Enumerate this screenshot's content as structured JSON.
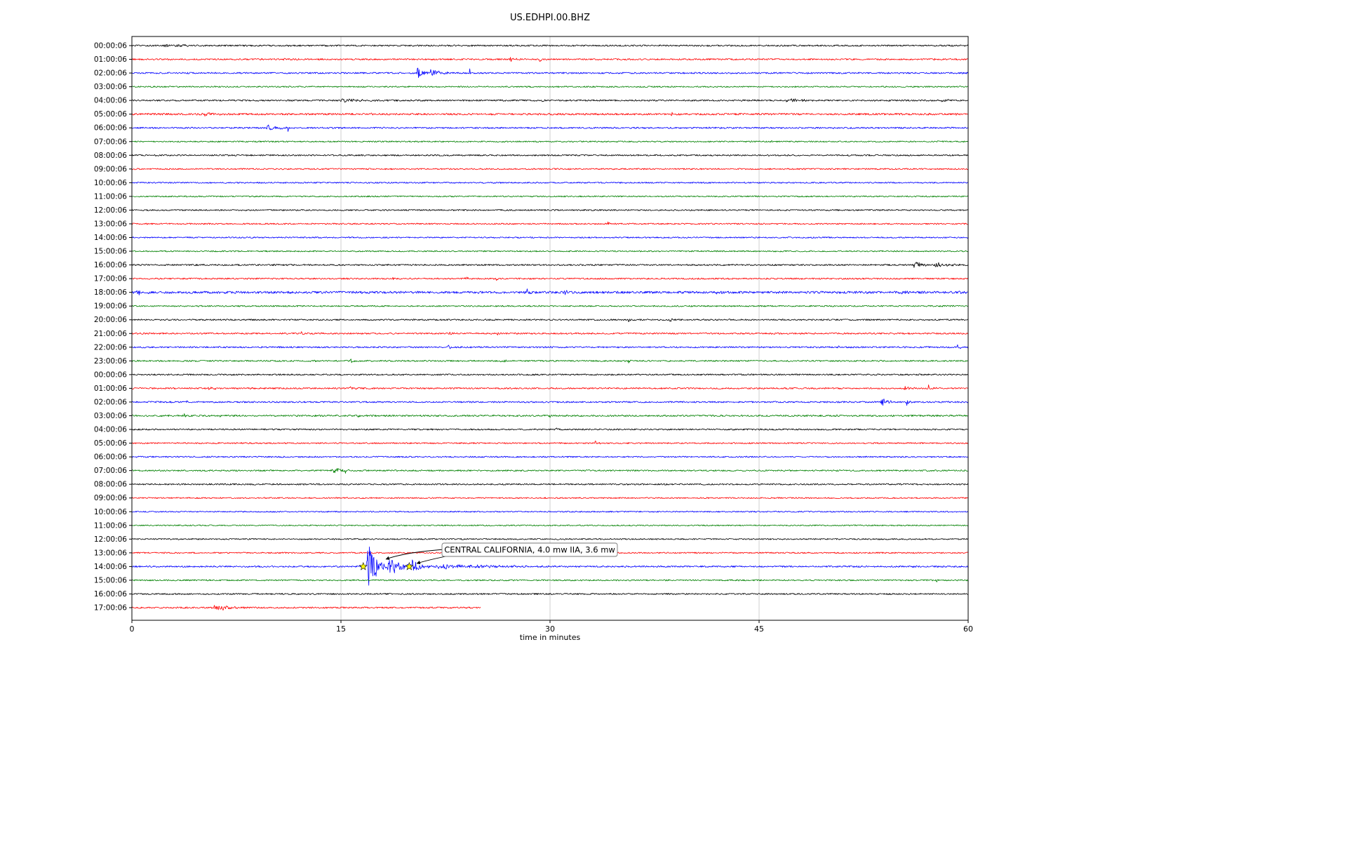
{
  "title": "US.EDHPI.00.BHZ",
  "chart_data": {
    "type": "line",
    "subtype": "seismogram-dayplot",
    "title": "US.EDHPI.00.BHZ",
    "xlabel": "time in minutes",
    "x_range": [
      0,
      60
    ],
    "x_ticks": [
      0,
      15,
      30,
      45,
      60
    ],
    "x_tick_labels": [
      "0",
      "15",
      "30",
      "45",
      "60"
    ],
    "grid": true,
    "legend": false,
    "color_cycle": [
      "#000000",
      "#ff0000",
      "#0000ff",
      "#008000"
    ],
    "rows": [
      {
        "label": "00:00:06",
        "noise": 1.0,
        "events": [
          {
            "t": 2.3,
            "dur": 0.5,
            "amp": 3
          },
          {
            "t": 3.0,
            "dur": 1.5,
            "amp": 2
          },
          {
            "t": 11.2,
            "dur": 0.3,
            "amp": 2.5
          }
        ]
      },
      {
        "label": "01:00:06",
        "noise": 1.0,
        "events": [
          {
            "t": 10.7,
            "dur": 0.3,
            "amp": 3
          },
          {
            "t": 27.0,
            "dur": 0.6,
            "amp": 4
          },
          {
            "t": 29.2,
            "dur": 0.4,
            "amp": 3.5
          },
          {
            "t": 57.5,
            "dur": 0.15,
            "amp": 5
          }
        ]
      },
      {
        "label": "02:00:06",
        "noise": 1.0,
        "events": [
          {
            "t": 20.4,
            "dur": 0.8,
            "amp": 9
          },
          {
            "t": 21.3,
            "dur": 1.2,
            "amp": 7
          },
          {
            "t": 24.2,
            "dur": 0.12,
            "amp": 10
          }
        ]
      },
      {
        "label": "03:00:06",
        "noise": 0.85,
        "events": []
      },
      {
        "label": "04:00:06",
        "noise": 1.0,
        "events": [
          {
            "t": 14.8,
            "dur": 2.8,
            "amp": 3.5
          },
          {
            "t": 29.4,
            "dur": 0.3,
            "amp": 3
          },
          {
            "t": 46.8,
            "dur": 2.5,
            "amp": 2.2
          },
          {
            "t": 58.0,
            "dur": 1.0,
            "amp": 2
          }
        ]
      },
      {
        "label": "05:00:06",
        "noise": 1.25,
        "events": [
          {
            "t": 5.0,
            "dur": 2.0,
            "amp": 2.2
          },
          {
            "t": 17.0,
            "dur": 0.5,
            "amp": 2.5
          },
          {
            "t": 38.6,
            "dur": 0.5,
            "amp": 3
          }
        ]
      },
      {
        "label": "06:00:06",
        "noise": 1.0,
        "events": [
          {
            "t": 9.6,
            "dur": 1.6,
            "amp": 4
          },
          {
            "t": 11.1,
            "dur": 0.3,
            "amp": 8
          }
        ]
      },
      {
        "label": "07:00:06",
        "noise": 0.85,
        "events": [
          {
            "t": 45.8,
            "dur": 0.15,
            "amp": 3
          }
        ]
      },
      {
        "label": "08:00:06",
        "noise": 0.95,
        "events": []
      },
      {
        "label": "09:00:06",
        "noise": 0.9,
        "events": []
      },
      {
        "label": "10:00:06",
        "noise": 0.85,
        "events": []
      },
      {
        "label": "11:00:06",
        "noise": 0.85,
        "events": []
      },
      {
        "label": "12:00:06",
        "noise": 0.9,
        "events": []
      },
      {
        "label": "13:00:06",
        "noise": 0.9,
        "events": [
          {
            "t": 34.1,
            "dur": 0.2,
            "amp": 4
          }
        ]
      },
      {
        "label": "14:00:06",
        "noise": 0.85,
        "events": []
      },
      {
        "label": "15:00:06",
        "noise": 0.85,
        "events": []
      },
      {
        "label": "16:00:06",
        "noise": 1.0,
        "events": [
          {
            "t": 56.0,
            "dur": 1.2,
            "amp": 5
          },
          {
            "t": 57.5,
            "dur": 1.5,
            "amp": 4
          }
        ]
      },
      {
        "label": "17:00:06",
        "noise": 0.95,
        "events": [
          {
            "t": 18.7,
            "dur": 0.4,
            "amp": 3
          },
          {
            "t": 23.9,
            "dur": 0.3,
            "amp": 4
          },
          {
            "t": 26.1,
            "dur": 0.3,
            "amp": 3.5
          }
        ]
      },
      {
        "label": "18:00:06",
        "noise": 1.5,
        "events": [
          {
            "t": 0.3,
            "dur": 0.8,
            "amp": 4
          },
          {
            "t": 28.3,
            "dur": 0.5,
            "amp": 4
          },
          {
            "t": 31.0,
            "dur": 0.4,
            "amp": 3
          },
          {
            "t": 41.8,
            "dur": 0.4,
            "amp": 3
          },
          {
            "t": 54.8,
            "dur": 0.8,
            "amp": 4
          },
          {
            "t": 59.3,
            "dur": 0.5,
            "amp": 3
          }
        ]
      },
      {
        "label": "19:00:06",
        "noise": 0.9,
        "events": []
      },
      {
        "label": "20:00:06",
        "noise": 0.95,
        "events": [
          {
            "t": 35.6,
            "dur": 0.15,
            "amp": 7
          },
          {
            "t": 38.5,
            "dur": 1.2,
            "amp": 3
          }
        ]
      },
      {
        "label": "21:00:06",
        "noise": 1.0,
        "events": [
          {
            "t": 12.1,
            "dur": 0.5,
            "amp": 3
          },
          {
            "t": 22.7,
            "dur": 0.4,
            "amp": 4
          },
          {
            "t": 26.2,
            "dur": 0.4,
            "amp": 3
          }
        ]
      },
      {
        "label": "22:00:06",
        "noise": 1.0,
        "events": [
          {
            "t": 22.6,
            "dur": 0.4,
            "amp": 4
          },
          {
            "t": 50.6,
            "dur": 0.5,
            "amp": 3
          },
          {
            "t": 59.2,
            "dur": 0.5,
            "amp": 4
          }
        ]
      },
      {
        "label": "23:00:06",
        "noise": 0.95,
        "events": [
          {
            "t": 12.7,
            "dur": 0.5,
            "amp": 3
          },
          {
            "t": 15.6,
            "dur": 0.6,
            "amp": 3
          },
          {
            "t": 26.4,
            "dur": 0.6,
            "amp": 4
          },
          {
            "t": 35.6,
            "dur": 0.2,
            "amp": 6
          }
        ]
      },
      {
        "label": "00:00:06",
        "noise": 0.95,
        "events": [
          {
            "t": 19.4,
            "dur": 0.8,
            "amp": 2.2
          }
        ]
      },
      {
        "label": "01:00:06",
        "noise": 1.0,
        "events": [
          {
            "t": 5.4,
            "dur": 1.2,
            "amp": 2.2
          },
          {
            "t": 15.6,
            "dur": 0.5,
            "amp": 2.5
          },
          {
            "t": 55.4,
            "dur": 0.6,
            "amp": 4
          },
          {
            "t": 57.1,
            "dur": 0.5,
            "amp": 5
          }
        ]
      },
      {
        "label": "02:00:06",
        "noise": 1.0,
        "events": [
          {
            "t": 3.8,
            "dur": 0.4,
            "amp": 3
          },
          {
            "t": 53.7,
            "dur": 0.8,
            "amp": 6
          },
          {
            "t": 55.5,
            "dur": 0.6,
            "amp": 6
          }
        ]
      },
      {
        "label": "03:00:06",
        "noise": 1.1,
        "events": [
          {
            "t": 3.7,
            "dur": 0.3,
            "amp": 4
          },
          {
            "t": 6.2,
            "dur": 0.3,
            "amp": 4
          },
          {
            "t": 16.2,
            "dur": 0.15,
            "amp": 8
          },
          {
            "t": 29.9,
            "dur": 0.3,
            "amp": 5
          },
          {
            "t": 35.3,
            "dur": 0.2,
            "amp": 5
          }
        ]
      },
      {
        "label": "04:00:06",
        "noise": 0.95,
        "events": [
          {
            "t": 30.4,
            "dur": 0.25,
            "amp": 4
          }
        ]
      },
      {
        "label": "05:00:06",
        "noise": 0.9,
        "events": [
          {
            "t": 33.2,
            "dur": 0.4,
            "amp": 3
          }
        ]
      },
      {
        "label": "06:00:06",
        "noise": 0.9,
        "events": []
      },
      {
        "label": "07:00:06",
        "noise": 0.95,
        "events": [
          {
            "t": 14.3,
            "dur": 1.2,
            "amp": 4
          },
          {
            "t": 15.3,
            "dur": 0.2,
            "amp": 7
          }
        ]
      },
      {
        "label": "08:00:06",
        "noise": 0.95,
        "events": []
      },
      {
        "label": "09:00:06",
        "noise": 0.85,
        "events": []
      },
      {
        "label": "10:00:06",
        "noise": 0.8,
        "events": []
      },
      {
        "label": "11:00:06",
        "noise": 0.8,
        "events": []
      },
      {
        "label": "12:00:06",
        "noise": 0.85,
        "events": [
          {
            "t": 47.0,
            "dur": 0.15,
            "amp": 2.5
          }
        ]
      },
      {
        "label": "13:00:06",
        "noise": 0.85,
        "events": []
      },
      {
        "label": "14:00:06",
        "noise": 1.0,
        "events": [
          {
            "t": 16.8,
            "dur": 1.3,
            "amp": 34
          },
          {
            "t": 18.3,
            "dur": 2.0,
            "amp": 12
          },
          {
            "t": 19.9,
            "dur": 1.6,
            "amp": 9
          },
          {
            "t": 21.5,
            "dur": 8.0,
            "amp": 3
          },
          {
            "t": 56.0,
            "dur": 0.3,
            "amp": 2
          }
        ]
      },
      {
        "label": "15:00:06",
        "noise": 0.9,
        "events": [
          {
            "t": 57.7,
            "dur": 0.3,
            "amp": 3
          }
        ]
      },
      {
        "label": "16:00:06",
        "noise": 0.95,
        "events": []
      },
      {
        "label": "17:00:06",
        "noise": 1.0,
        "end": 25,
        "events": [
          {
            "t": 5.8,
            "dur": 1.8,
            "amp": 5
          }
        ]
      }
    ],
    "annotation": {
      "text": "CENTRAL CALIFORNIA, 4.0 mw IIA, 3.6 mw",
      "row_label": "14:00:06",
      "row_index": 38,
      "stars_minutes": [
        16.6,
        19.9
      ],
      "star_color": "#ffff00"
    }
  }
}
